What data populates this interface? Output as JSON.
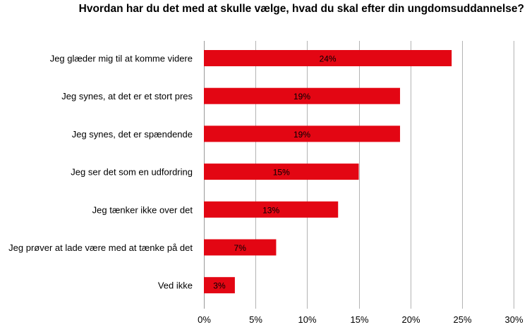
{
  "chart_data": {
    "type": "bar",
    "orientation": "horizontal",
    "title": "Hvordan har du det med at skulle vælge, hvad du skal efter din ungdomsuddannelse?",
    "categories": [
      "Jeg glæder mig til at komme videre",
      "Jeg synes, at det er et stort pres",
      "Jeg synes, det er spændende",
      "Jeg ser det som en udfordring",
      "Jeg tænker ikke over det",
      "Jeg prøver at lade være med at tænke på det",
      "Ved ikke"
    ],
    "values": [
      24,
      19,
      19,
      15,
      13,
      7,
      3
    ],
    "data_labels": [
      "24%",
      "19%",
      "19%",
      "15%",
      "13%",
      "7%",
      "3%"
    ],
    "xlim": [
      0,
      30
    ],
    "x_ticks": [
      0,
      5,
      10,
      15,
      20,
      25,
      30
    ],
    "x_tick_labels": [
      "0%",
      "5%",
      "10%",
      "15%",
      "20%",
      "25%",
      "30%"
    ],
    "grid": "vertical",
    "bar_color": "#e30613",
    "grid_color": "#b3b3b3"
  }
}
